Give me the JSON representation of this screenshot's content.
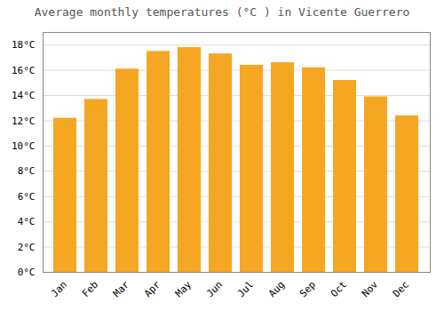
{
  "chart_data": {
    "type": "bar",
    "title": "Average monthly temperatures (°C ) in Vicente Guerrero",
    "categories": [
      "Jan",
      "Feb",
      "Mar",
      "Apr",
      "May",
      "Jun",
      "Jul",
      "Aug",
      "Sep",
      "Oct",
      "Nov",
      "Dec"
    ],
    "values": [
      12.2,
      13.7,
      16.1,
      17.5,
      17.8,
      17.3,
      16.4,
      16.6,
      16.2,
      15.2,
      13.9,
      12.4
    ],
    "color": "#F5A623",
    "ylim": [
      0,
      19
    ],
    "yticks": [
      {
        "value": 0,
        "label": "0°C"
      },
      {
        "value": 2,
        "label": "2°C"
      },
      {
        "value": 4,
        "label": "4°C"
      },
      {
        "value": 6,
        "label": "6°C"
      },
      {
        "value": 8,
        "label": "8°C"
      },
      {
        "value": 10,
        "label": "10°C"
      },
      {
        "value": 12,
        "label": "12°C"
      },
      {
        "value": 14,
        "label": "14°C"
      },
      {
        "value": 16,
        "label": "16°C"
      },
      {
        "value": 18,
        "label": "18°C"
      }
    ],
    "grid": true
  }
}
